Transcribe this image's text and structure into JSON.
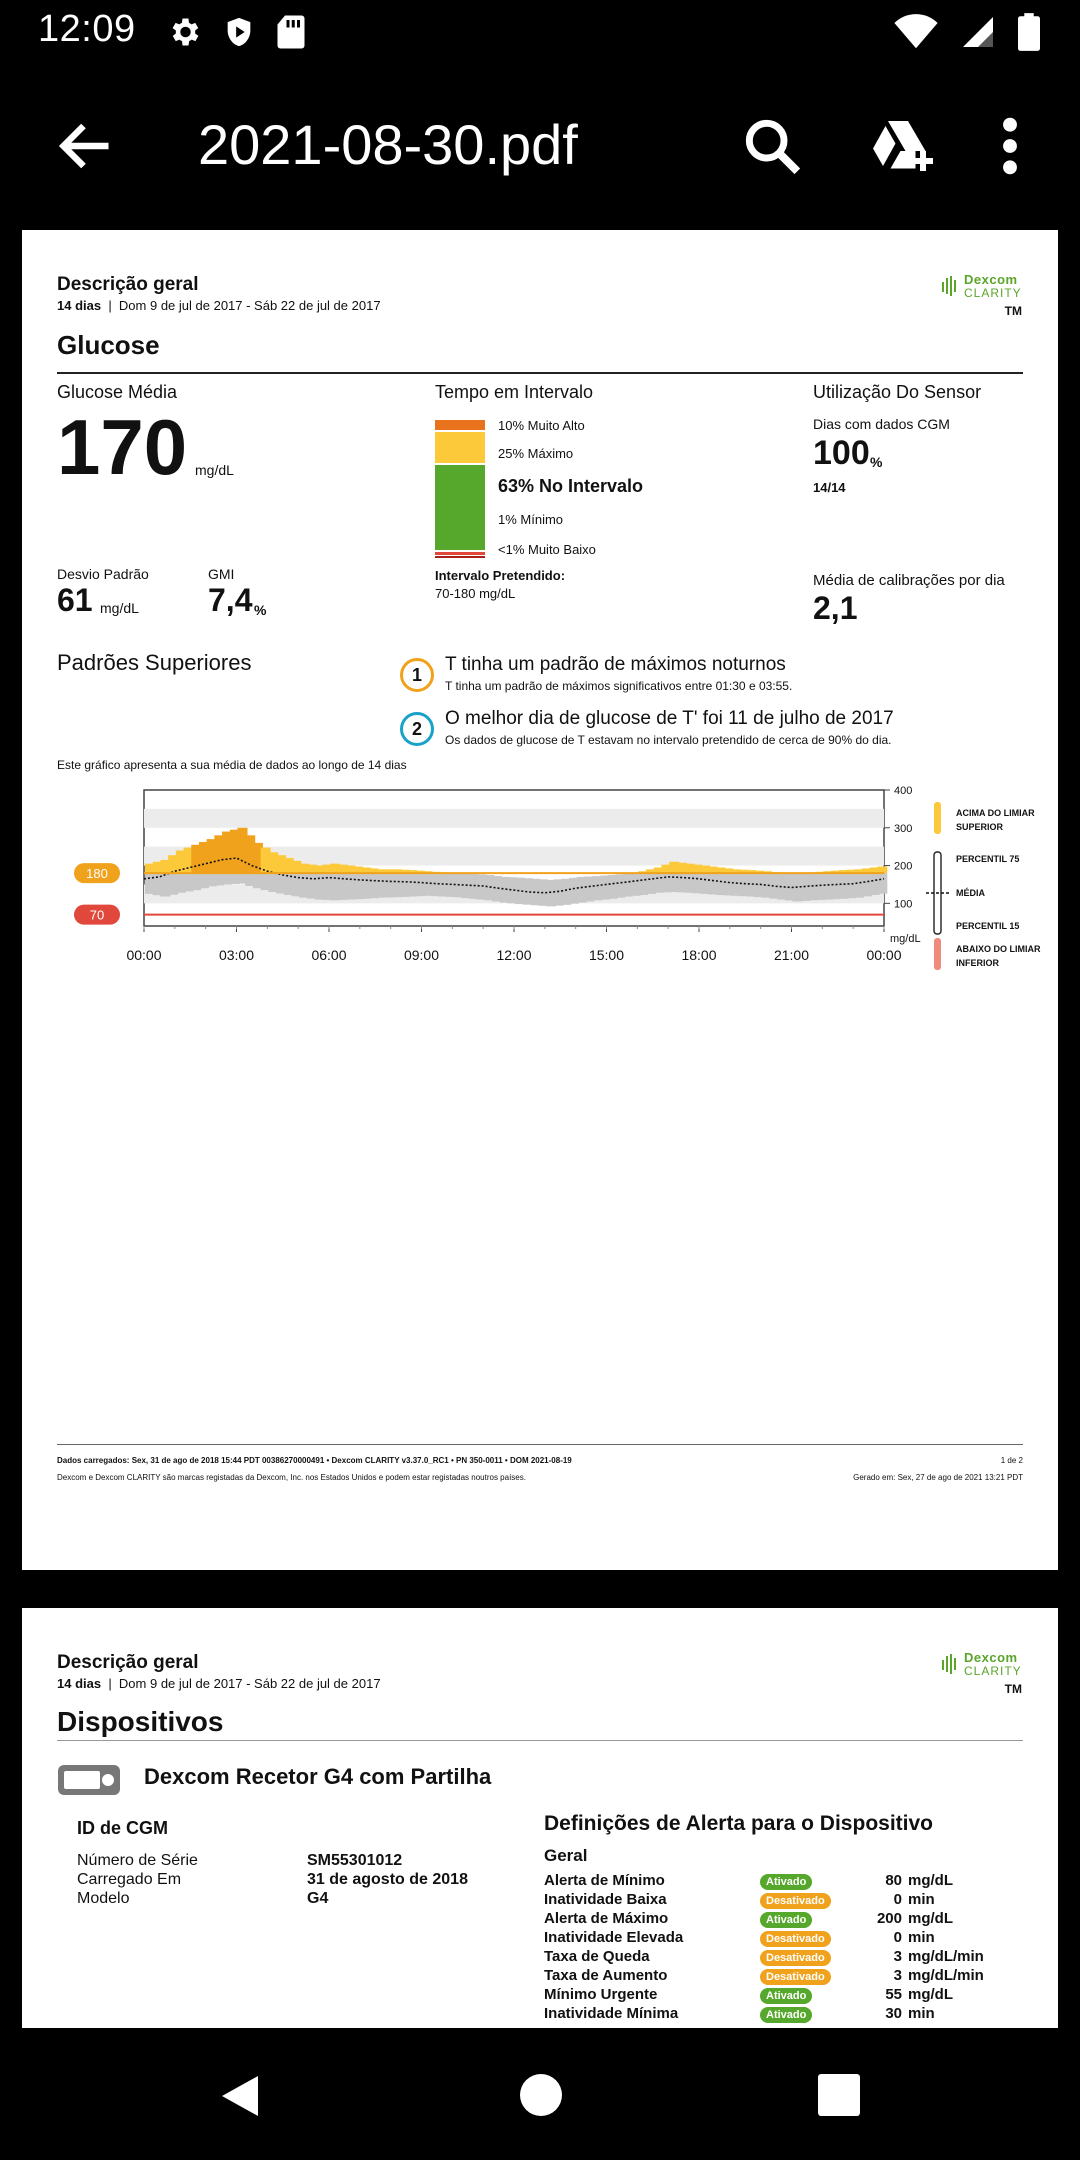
{
  "status": {
    "time": "12:09"
  },
  "toolbar": {
    "title": "2021-08-30.pdf"
  },
  "page1": {
    "header": {
      "title": "Descrição geral",
      "days": "14 dias",
      "range": "Dom 9 de jul de 2017 - Sáb 22 de jul de 2017",
      "logo_brand": "Dexcom",
      "logo_product": "CLARITY",
      "tm": "TM"
    },
    "section": "Glucose",
    "avg": {
      "label": "Glucose Média",
      "value": "170",
      "unit": "mg/dL"
    },
    "sd": {
      "label": "Desvio Padrão",
      "value": "61",
      "unit": "mg/dL"
    },
    "gmi": {
      "label": "GMI",
      "value": "7,4",
      "unit": "%"
    },
    "tir": {
      "label": "Tempo em Intervalo",
      "very_high": "10% Muito Alto",
      "high": "25% Máximo",
      "in_range": "63% No Intervalo",
      "low": "1% Mínimo",
      "very_low": "<1% Muito Baixo",
      "target_label": "Intervalo Pretendido:",
      "target_value": "70-180 mg/dL",
      "colors": {
        "very_high": "#e8731c",
        "high": "#fcc93b",
        "in_range": "#55a82b",
        "low": "#e0483b",
        "very_low": "#a8201a"
      }
    },
    "sensor": {
      "label": "Utilização Do Sensor",
      "days_label": "Dias com dados CGM",
      "days_value": "100",
      "days_unit": "%",
      "days_count": "14/14",
      "calib_label": "Média de calibrações por dia",
      "calib_value": "2,1"
    },
    "patterns": {
      "title": "Padrões Superiores",
      "items": [
        {
          "num": "1",
          "title": "T tinha um padrão de máximos noturnos",
          "sub": "T tinha um padrão de máximos significativos entre 01:30 e 03:55.",
          "color": "#f0a21c"
        },
        {
          "num": "2",
          "title": "O melhor dia de glucose de T' foi 11 de julho de 2017",
          "sub": "Os dados de glucose de T estavam no intervalo pretendido de cerca de 90% do dia.",
          "color": "#18a2c8"
        }
      ]
    },
    "chart_caption": "Este gráfico apresenta a sua média de dados ao longo de 14 dias",
    "footer": {
      "line1": "Dados carregados: Sex, 31 de ago de 2018 15:44 PDT     00386270000491  •  Dexcom CLARITY v3.37.0_RC1  •  PN 350-0011  •  DOM 2021-08-19",
      "page": "1 de 2",
      "line2": "Dexcom e Dexcom CLARITY são marcas registadas da Dexcom, Inc. nos Estados Unidos e podem estar registadas noutros países.",
      "generated": "Gerado em: Sex, 27 de ago de 2021 13:21 PDT"
    }
  },
  "chart_data": {
    "type": "bar",
    "title": "",
    "ylim": [
      40,
      400
    ],
    "yticks": [
      "400",
      "300",
      "200",
      "100"
    ],
    "yunit": "mg/dL",
    "xticks": [
      "00:00",
      "03:00",
      "06:00",
      "09:00",
      "12:00",
      "15:00",
      "18:00",
      "21:00",
      "00:00"
    ],
    "thresholds": [
      {
        "label": "180",
        "value": 180,
        "color": "#f0a21c"
      },
      {
        "label": "70",
        "value": 70,
        "color": "#e0483b"
      }
    ],
    "legend": [
      {
        "label": "ACIMA DO LIMIAR SUPERIOR",
        "color": "#fcc93b"
      },
      {
        "label": "PERCENTIL 75"
      },
      {
        "label": "MÉDIA"
      },
      {
        "label": "PERCENTIL 15"
      },
      {
        "label": "ABAIXO DO LIMIAR INFERIOR",
        "color": "#f08a7c"
      }
    ],
    "hours": [
      0,
      0.5,
      1,
      1.5,
      2,
      2.5,
      3,
      3.5,
      4,
      4.5,
      5,
      5.5,
      6,
      6.5,
      7,
      7.5,
      8,
      8.5,
      9,
      9.5,
      10,
      10.5,
      11,
      11.5,
      12,
      12.5,
      13,
      13.5,
      14,
      14.5,
      15,
      15.5,
      16,
      16.5,
      17,
      17.5,
      18,
      18.5,
      19,
      19.5,
      20,
      20.5,
      21,
      21.5,
      22,
      22.5,
      23,
      23.5
    ],
    "series": [
      {
        "name": "PERCENTIL 75",
        "values": [
          205,
          215,
          240,
          255,
          270,
          290,
          300,
          260,
          235,
          220,
          205,
          200,
          205,
          200,
          195,
          190,
          190,
          188,
          185,
          182,
          180,
          178,
          175,
          170,
          168,
          165,
          162,
          165,
          170,
          172,
          175,
          178,
          185,
          195,
          210,
          205,
          200,
          195,
          190,
          188,
          185,
          180,
          178,
          182,
          185,
          188,
          190,
          195
        ]
      },
      {
        "name": "MÉDIA",
        "values": [
          165,
          170,
          185,
          195,
          205,
          215,
          220,
          200,
          185,
          175,
          168,
          165,
          168,
          165,
          162,
          160,
          158,
          157,
          155,
          152,
          150,
          148,
          146,
          140,
          135,
          130,
          128,
          132,
          140,
          145,
          150,
          155,
          160,
          165,
          170,
          168,
          165,
          160,
          155,
          152,
          150,
          145,
          142,
          145,
          148,
          150,
          152,
          158
        ]
      },
      {
        "name": "PERCENTIL 15",
        "values": [
          125,
          118,
          128,
          135,
          145,
          150,
          152,
          140,
          130,
          122,
          115,
          110,
          108,
          110,
          112,
          115,
          116,
          118,
          120,
          118,
          116,
          112,
          108,
          102,
          98,
          95,
          92,
          96,
          102,
          108,
          112,
          118,
          122,
          128,
          130,
          128,
          125,
          122,
          120,
          118,
          115,
          110,
          105,
          108,
          110,
          112,
          115,
          122
        ]
      }
    ]
  },
  "page2": {
    "header": {
      "title": "Descrição geral",
      "days": "14 dias",
      "range": "Dom 9 de jul de 2017 - Sáb 22 de jul de 2017",
      "logo_brand": "Dexcom",
      "logo_product": "CLARITY",
      "tm": "TM"
    },
    "section": "Dispositivos",
    "device_name": "Dexcom Recetor G4 com Partilha",
    "cgm_title": "ID de CGM",
    "cgm_rows": [
      {
        "key": "Número de Série",
        "value": "SM55301012"
      },
      {
        "key": "Carregado Em",
        "value": "31 de agosto de 2018"
      },
      {
        "key": "Modelo",
        "value": "G4"
      }
    ],
    "alerts_title": "Definições de Alerta para o Dispositivo",
    "alerts_group": "Geral",
    "alerts": [
      {
        "name": "Alerta de Mínimo",
        "status": "Ativado",
        "on": true,
        "value": "80",
        "unit": "mg/dL"
      },
      {
        "name": "Inatividade Baixa",
        "status": "Desativado",
        "on": false,
        "value": "0",
        "unit": "min"
      },
      {
        "name": "Alerta de Máximo",
        "status": "Ativado",
        "on": true,
        "value": "200",
        "unit": "mg/dL"
      },
      {
        "name": "Inatividade Elevada",
        "status": "Desativado",
        "on": false,
        "value": "0",
        "unit": "min"
      },
      {
        "name": "Taxa de Queda",
        "status": "Desativado",
        "on": false,
        "value": "3",
        "unit": "mg/dL/min"
      },
      {
        "name": "Taxa de Aumento",
        "status": "Desativado",
        "on": false,
        "value": "3",
        "unit": "mg/dL/min"
      },
      {
        "name": "Mínimo Urgente",
        "status": "Ativado",
        "on": true,
        "value": "55",
        "unit": "mg/dL"
      },
      {
        "name": "Inatividade Mínima",
        "status": "Ativado",
        "on": true,
        "value": "30",
        "unit": "min"
      }
    ]
  }
}
